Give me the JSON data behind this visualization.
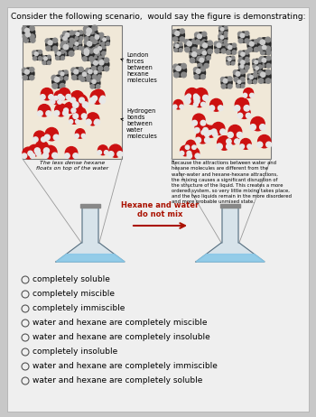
{
  "title": "Consider the following scenario,  would say the figure is demonstrating:",
  "title_fontsize": 6.5,
  "background_color": "#c8c8c8",
  "inner_bg": "#e8e8e8",
  "options": [
    "completely soluble",
    "completely miscible",
    "completely immiscible",
    "water and hexane are completely miscible",
    "water and hexane are completely insoluble",
    "completely insoluble",
    "water and hexane are completely immiscible",
    "water and hexane are completely soluble"
  ],
  "option_fontsize": 6.5,
  "left_caption": "The less dense hexane\nfloats on top of the water",
  "right_caption": "Because the attractions between water and\nhexane molecules are different from the\nwater-water and hexane-hexane attractions,\nthe mixing causes a significant disruption of\nthe structure of the liquid. This creates a more\nordered system, so very little mixing takes place,\nand the two liquids remain in the more disordered\nand more probable unmixed state.",
  "label1": "London\nforces\nbetween\nhexane\nmolecules",
  "label2": "Hydrogen\nbonds\nbetween\nwater\nmolecules",
  "arrow_label": "Hexane and water\ndo not mix",
  "arrow_color": "#aa1100",
  "mol_dark": "#2a2a2a",
  "mol_gray": "#888888",
  "mol_red": "#cc1111",
  "mol_white": "#e8e8e8",
  "mol_bg": "#f0e8d8"
}
